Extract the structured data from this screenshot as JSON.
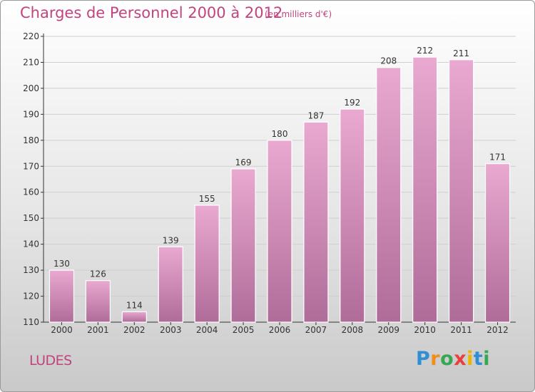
{
  "title": "Charges de Personnel 2000 à 2012",
  "subtitle": "(en milliers d'€)",
  "location": "LUDES",
  "logo": {
    "letters": [
      "P",
      "r",
      "o",
      "x",
      "i",
      "t",
      "i"
    ],
    "colors": [
      "#2f8fd4",
      "#f28c1a",
      "#34a853",
      "#e8403a",
      "#f0b400",
      "#2f8fd4",
      "#34a853"
    ]
  },
  "colors": {
    "title": "#c2437e",
    "bar_top": "#e9a9d0",
    "bar_bottom": "#b06c99",
    "axis": "#333333",
    "grid": "#cfcfcf"
  },
  "chart_data": {
    "type": "bar",
    "categories": [
      "2000",
      "2001",
      "2002",
      "2003",
      "2004",
      "2005",
      "2006",
      "2007",
      "2008",
      "2009",
      "2010",
      "2011",
      "2012"
    ],
    "values": [
      130,
      126,
      114,
      139,
      155,
      169,
      180,
      187,
      192,
      208,
      212,
      211,
      171
    ],
    "ylim": [
      110,
      220
    ],
    "yticks": [
      110,
      120,
      130,
      140,
      150,
      160,
      170,
      180,
      190,
      200,
      210,
      220
    ],
    "grid": true,
    "data_labels": true
  }
}
